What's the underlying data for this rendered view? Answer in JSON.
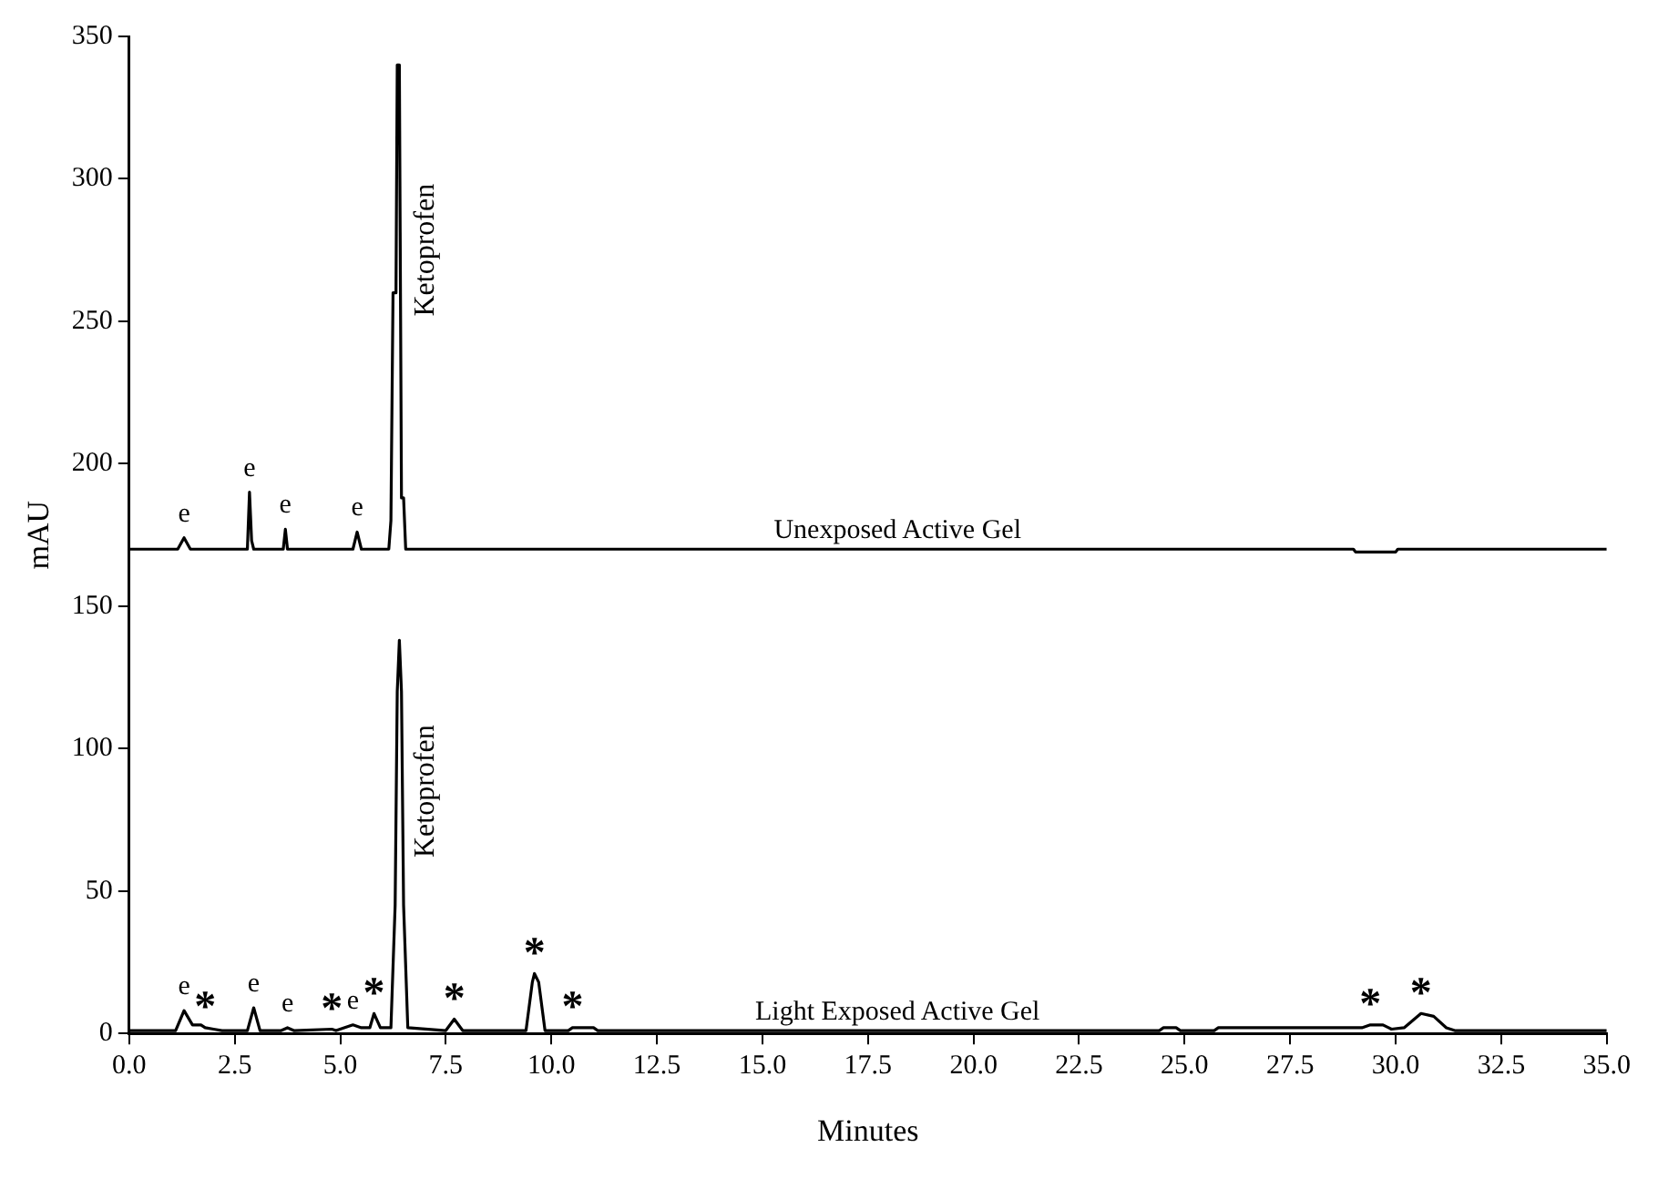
{
  "chart_data": {
    "type": "line",
    "xlabel": "Minutes",
    "ylabel": "mAU",
    "xlim": [
      0,
      35
    ],
    "xticks": [
      {
        "value": 0,
        "label": "0.0"
      },
      {
        "value": 2.5,
        "label": "2.5"
      },
      {
        "value": 5,
        "label": "5.0"
      },
      {
        "value": 7.5,
        "label": "7.5"
      },
      {
        "value": 10,
        "label": "10.0"
      },
      {
        "value": 12.5,
        "label": "12.5"
      },
      {
        "value": 15,
        "label": "15.0"
      },
      {
        "value": 17.5,
        "label": "17.5"
      },
      {
        "value": 20,
        "label": "20.0"
      },
      {
        "value": 22.5,
        "label": "22.5"
      },
      {
        "value": 25,
        "label": "25.0"
      },
      {
        "value": 27.5,
        "label": "27.5"
      },
      {
        "value": 30,
        "label": "30.0"
      },
      {
        "value": 32.5,
        "label": "32.5"
      },
      {
        "value": 35,
        "label": "35.0"
      }
    ],
    "ylim": [
      0,
      350
    ],
    "yticks": [
      0,
      50,
      100,
      150,
      200,
      250,
      300,
      350
    ],
    "grid": false,
    "legend": false,
    "marker": "none",
    "line_style": "solid",
    "series": [
      {
        "name": "Unexposed Active Gel",
        "color": "#000000",
        "x": [
          0,
          1.15,
          1.3,
          1.45,
          2.8,
          2.85,
          2.9,
          2.95,
          3.65,
          3.7,
          3.75,
          5.3,
          5.4,
          5.5,
          6.15,
          6.2,
          6.25,
          6.32,
          6.35,
          6.4,
          6.45,
          6.5,
          6.55,
          29.0,
          29.05,
          30.0,
          30.05,
          35
        ],
        "values": [
          170,
          170,
          174,
          170,
          170,
          190,
          173,
          170,
          170,
          177,
          170,
          170,
          176,
          170,
          170,
          180,
          260,
          260,
          340,
          340,
          188,
          188,
          170,
          170,
          169,
          169,
          170,
          170
        ]
      },
      {
        "name": "Light Exposed Active Gel",
        "color": "#000000",
        "x": [
          0,
          1.1,
          1.3,
          1.5,
          1.7,
          1.8,
          2.0,
          2.2,
          2.8,
          2.95,
          3.1,
          3.6,
          3.75,
          3.9,
          4.8,
          4.9,
          5.3,
          5.5,
          5.7,
          5.8,
          5.95,
          6.2,
          6.3,
          6.35,
          6.4,
          6.45,
          6.5,
          6.6,
          7.5,
          7.7,
          7.9,
          9.4,
          9.55,
          9.6,
          9.7,
          9.85,
          10.4,
          10.5,
          11.0,
          11.1,
          24.4,
          24.5,
          24.8,
          24.9,
          25.7,
          25.8,
          29.2,
          29.4,
          29.7,
          29.9,
          30.2,
          30.6,
          30.9,
          31.2,
          31.4,
          35
        ],
        "values": [
          1,
          1,
          8,
          3,
          3,
          2,
          1.5,
          1,
          1,
          9,
          1,
          1,
          2,
          1,
          1.5,
          1,
          3,
          2,
          2,
          7,
          2,
          2,
          45,
          120,
          138,
          120,
          45,
          2,
          1,
          5,
          1,
          1,
          18,
          21,
          18,
          1,
          1,
          2,
          2,
          1,
          1,
          2,
          2,
          1,
          1,
          2,
          2,
          3,
          3,
          1.5,
          2,
          7,
          6,
          2,
          1,
          1
        ]
      }
    ],
    "annotations": [
      {
        "text": "e",
        "x": 1.3,
        "y": 174
      },
      {
        "text": "e",
        "x": 2.85,
        "y": 190
      },
      {
        "text": "e",
        "x": 3.7,
        "y": 177
      },
      {
        "text": "e",
        "x": 5.4,
        "y": 176
      },
      {
        "text": "Ketoprofen",
        "x": 6.35,
        "y": 275
      },
      {
        "text": "e",
        "x": 1.3,
        "y": 8
      },
      {
        "text": "*",
        "x": 1.8,
        "y": 2
      },
      {
        "text": "e",
        "x": 2.95,
        "y": 9
      },
      {
        "text": "e",
        "x": 3.75,
        "y": 2
      },
      {
        "text": "*",
        "x": 4.8,
        "y": 1.5
      },
      {
        "text": "e",
        "x": 5.3,
        "y": 3
      },
      {
        "text": "*",
        "x": 5.8,
        "y": 7
      },
      {
        "text": "Ketoprofen",
        "x": 6.35,
        "y": 85
      },
      {
        "text": "*",
        "x": 7.7,
        "y": 5
      },
      {
        "text": "*",
        "x": 9.6,
        "y": 21
      },
      {
        "text": "*",
        "x": 10.5,
        "y": 2
      },
      {
        "text": "*",
        "x": 29.4,
        "y": 3
      },
      {
        "text": "*",
        "x": 30.6,
        "y": 7
      }
    ]
  }
}
